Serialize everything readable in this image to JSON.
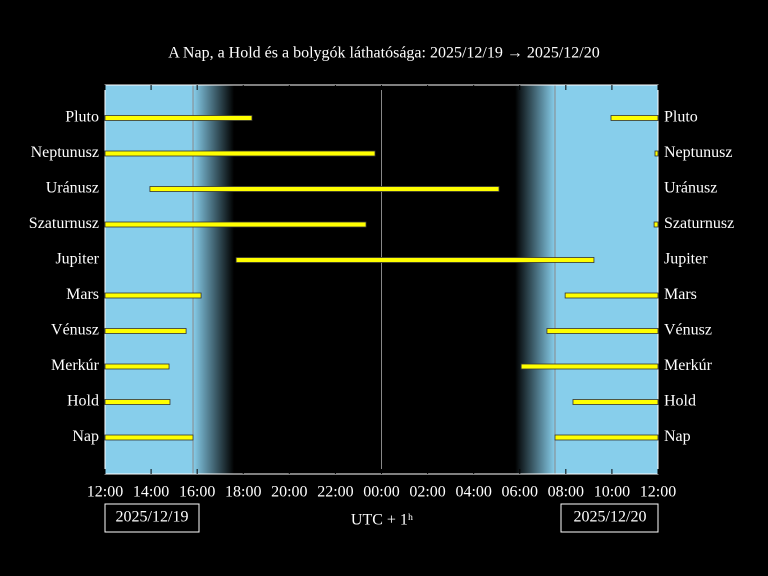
{
  "chart_data": {
    "type": "visibility",
    "title": "A Nap, a Hold és a bolygók láthatósága: 2025/12/19 → 2025/12/20",
    "xlabel": "UTC + 1ʰ",
    "date_start": "2025/12/19",
    "date_end": "2025/12/20",
    "xlim": [
      12,
      36
    ],
    "xticks": [
      {
        "value": 12,
        "label": "12:00"
      },
      {
        "value": 14,
        "label": "14:00"
      },
      {
        "value": 16,
        "label": "16:00"
      },
      {
        "value": 18,
        "label": "18:00"
      },
      {
        "value": 20,
        "label": "20:00"
      },
      {
        "value": 22,
        "label": "22:00"
      },
      {
        "value": 24,
        "label": "00:00"
      },
      {
        "value": 26,
        "label": "02:00"
      },
      {
        "value": 28,
        "label": "04:00"
      },
      {
        "value": 30,
        "label": "06:00"
      },
      {
        "value": 32,
        "label": "08:00"
      },
      {
        "value": 34,
        "label": "10:00"
      },
      {
        "value": 36,
        "label": "12:00"
      }
    ],
    "twilight": {
      "sunset": 15.82,
      "night_start": 17.6,
      "night_end": 29.8,
      "sunrise": 31.53,
      "midnight": 24
    },
    "day_color": "#87ceeb",
    "bar_color": "#ffff00",
    "rows": [
      {
        "name": "Pluto",
        "intervals": [
          [
            12,
            18.38
          ],
          [
            33.96,
            36
          ]
        ]
      },
      {
        "name": "Neptunusz",
        "intervals": [
          [
            12,
            23.72
          ],
          [
            35.87,
            36
          ]
        ]
      },
      {
        "name": "Uránusz",
        "intervals": [
          [
            13.95,
            29.1
          ]
        ]
      },
      {
        "name": "Szaturnusz",
        "intervals": [
          [
            12,
            23.33
          ],
          [
            35.83,
            36
          ]
        ]
      },
      {
        "name": "Jupiter",
        "intervals": [
          [
            17.69,
            33.22
          ]
        ]
      },
      {
        "name": "Mars",
        "intervals": [
          [
            12,
            16.17
          ],
          [
            31.97,
            36
          ]
        ]
      },
      {
        "name": "Vénusz",
        "intervals": [
          [
            12,
            15.52
          ],
          [
            31.18,
            36
          ]
        ]
      },
      {
        "name": "Merkúr",
        "intervals": [
          [
            12,
            14.78
          ],
          [
            30.06,
            36
          ]
        ]
      },
      {
        "name": "Hold",
        "intervals": [
          [
            12,
            14.82
          ],
          [
            32.31,
            36
          ]
        ]
      },
      {
        "name": "Nap",
        "intervals": [
          [
            12,
            15.82
          ],
          [
            31.53,
            36
          ]
        ]
      }
    ]
  }
}
